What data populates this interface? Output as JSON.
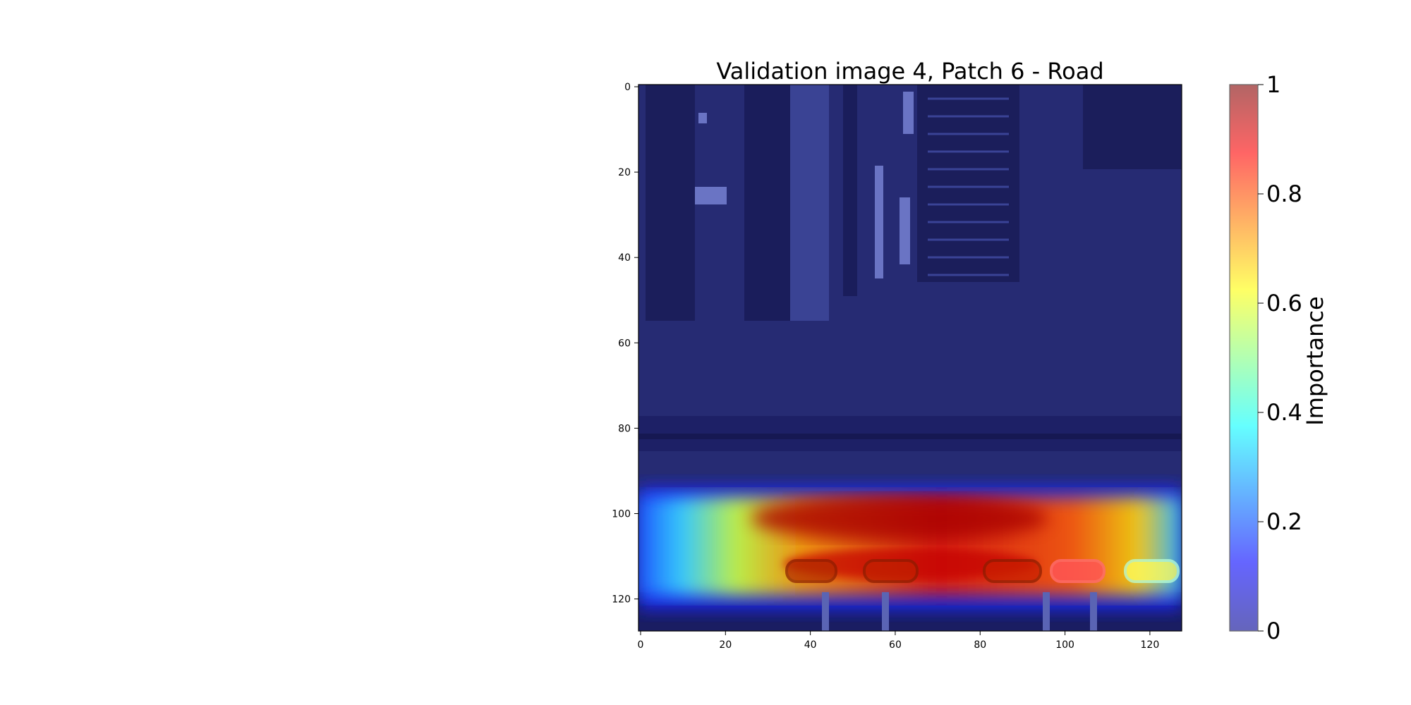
{
  "chart_data": {
    "type": "heatmap",
    "title": "Validation image 4, Patch 6 - Road",
    "x_ticks": [
      0,
      20,
      40,
      60,
      80,
      100,
      120
    ],
    "y_ticks": [
      0,
      20,
      40,
      60,
      80,
      100,
      120
    ],
    "xlim": [
      -0.5,
      127.5
    ],
    "ylim": [
      127.5,
      -0.5
    ],
    "colormap": "jet",
    "overlay_alpha": 0.6,
    "colorbar": {
      "label": "Importance",
      "range": [
        0,
        1
      ],
      "ticks": [
        "0",
        "0.2",
        "0.4",
        "0.6",
        "0.8",
        "1"
      ]
    },
    "high_importance_region": {
      "description_values": "importance concentrated along the road band",
      "x_range": [
        0,
        127
      ],
      "y_range": [
        93,
        120
      ],
      "peak": 1.0
    }
  }
}
